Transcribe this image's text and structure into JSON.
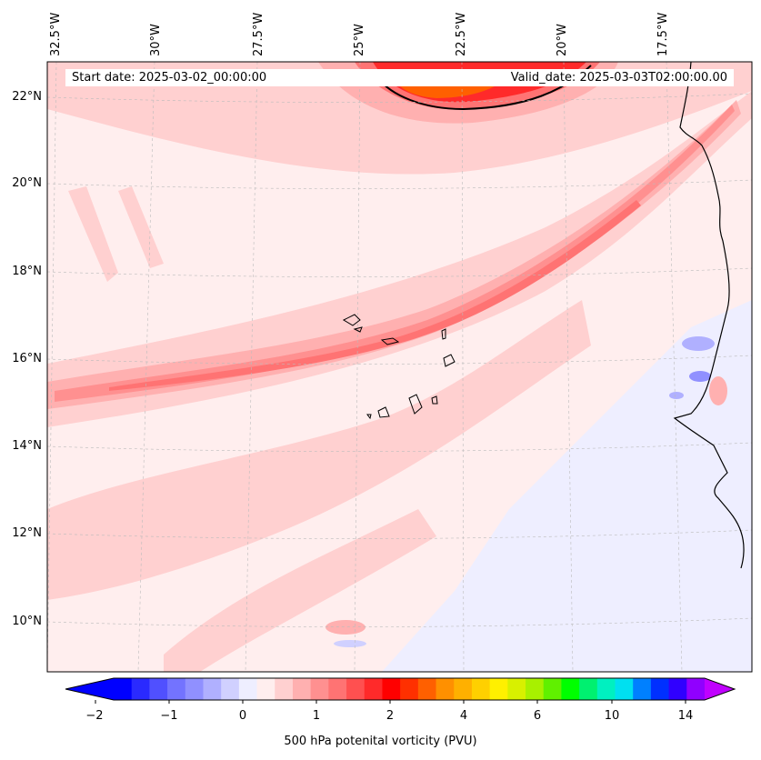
{
  "header": {
    "start_date": "Start date: 2025-03-02_00:00:00",
    "valid_date": "Valid_date: 2025-03-03T02:00:00.00"
  },
  "axes": {
    "longitude_labels": [
      "32.5°W",
      "30°W",
      "27.5°W",
      "25°W",
      "22.5°W",
      "20°W",
      "17.5°W"
    ],
    "latitude_labels": [
      "22°N",
      "20°N",
      "18°N",
      "16°N",
      "14°N",
      "12°N",
      "10°N"
    ]
  },
  "colorbar": {
    "title": "500 hPa potenital vorticity (PVU)",
    "tick_labels": [
      "−2",
      "−1",
      "0",
      "1",
      "2",
      "4",
      "6",
      "10",
      "14"
    ],
    "colors": [
      "#0000ff",
      "#2a2aff",
      "#5050ff",
      "#7373ff",
      "#9090ff",
      "#b0b0ff",
      "#d0d0ff",
      "#eeeeff",
      "#ffeeee",
      "#ffd0d0",
      "#ffb0b0",
      "#ff9090",
      "#ff7373",
      "#ff5050",
      "#ff2a2a",
      "#ff0000",
      "#ff3000",
      "#ff6000",
      "#ff9000",
      "#ffb000",
      "#ffd000",
      "#fff000",
      "#d8f000",
      "#a8f000",
      "#60f000",
      "#00ff00",
      "#00f070",
      "#00f0c0",
      "#00e0f0",
      "#0080ff",
      "#0030ff",
      "#3000ff",
      "#9000ff"
    ],
    "extend_low": "#0000ff",
    "extend_high": "#c000ff"
  },
  "field_colors": {
    "background": "#ffeeee",
    "light": "#ffd0d0",
    "medium": "#ffb0b0",
    "strong": "#ff9090",
    "stronger": "#ff7373",
    "core": "#ff5050",
    "peak": "#ff2a2a",
    "orange": "#ff6000",
    "negative_light": "#eeeeff",
    "negative": "#b0b0ff",
    "negative_strong": "#7373ff",
    "coast": "#000000"
  }
}
